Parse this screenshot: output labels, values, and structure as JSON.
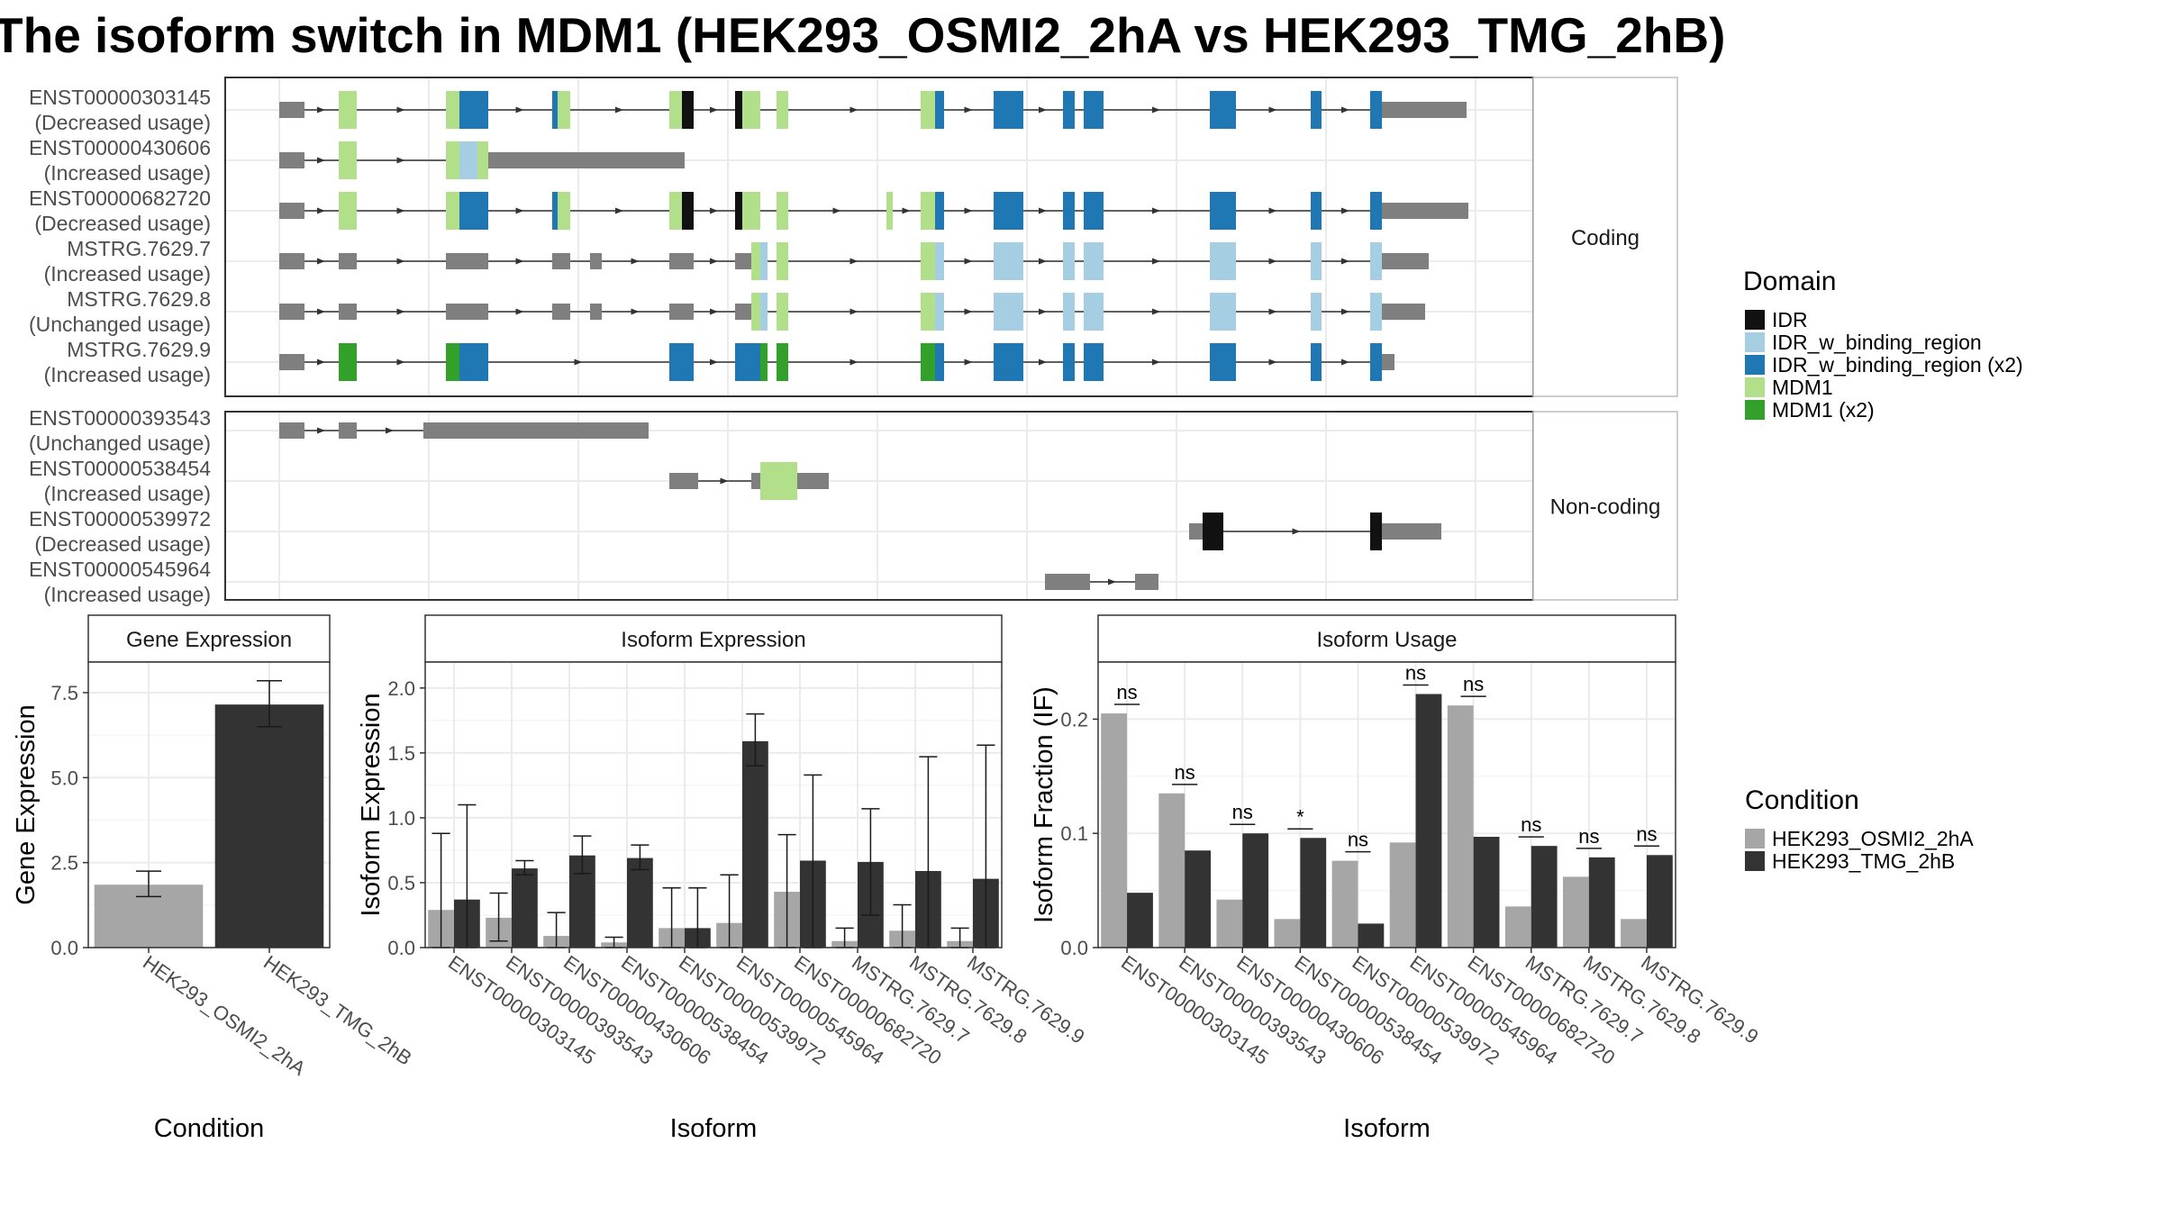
{
  "title": "The isoform switch in MDM1 (HEK293_OSMI2_2hA vs HEK293_TMG_2hB)",
  "colors": {
    "IDR": "#111111",
    "IDR_w_binding_region": "#a6cee3",
    "IDR_w_binding_region (x2)": "#1f78b4",
    "MDM1": "#b2df8a",
    "MDM1 (x2)": "#33a02c",
    "exon": "#7f7f7f",
    "cond_a": "#a6a6a6",
    "cond_b": "#333333"
  },
  "transcripts": {
    "coding_strip": "Coding",
    "noncoding_strip": "Non-coding",
    "coding": [
      {
        "id": "ENST00000303145",
        "usage": "(Decreased usage)",
        "exons": [
          [
            0,
            28,
            "exon"
          ],
          [
            66,
            86,
            "MDM1"
          ],
          [
            185,
            200,
            "MDM1"
          ],
          [
            200,
            232,
            "IDR_w_binding_region (x2)"
          ],
          [
            303,
            309,
            "IDR_w_binding_region (x2)"
          ],
          [
            309,
            323,
            "MDM1"
          ],
          [
            433,
            447,
            "MDM1"
          ],
          [
            447,
            460,
            "IDR"
          ],
          [
            506,
            514,
            "IDR"
          ],
          [
            514,
            534,
            "MDM1"
          ],
          [
            552,
            565,
            "MDM1"
          ],
          [
            712,
            728,
            "MDM1"
          ],
          [
            728,
            738,
            "IDR_w_binding_region (x2)"
          ],
          [
            793,
            826,
            "IDR_w_binding_region (x2)"
          ],
          [
            870,
            883,
            "IDR_w_binding_region (x2)"
          ],
          [
            893,
            915,
            "IDR_w_binding_region (x2)"
          ],
          [
            1033,
            1062,
            "IDR_w_binding_region (x2)"
          ],
          [
            1145,
            1157,
            "IDR_w_binding_region (x2)"
          ],
          [
            1211,
            1224,
            "IDR_w_binding_region (x2)"
          ],
          [
            1224,
            1318,
            "exon"
          ]
        ]
      },
      {
        "id": "ENST00000430606",
        "usage": "(Increased usage)",
        "exons": [
          [
            0,
            28,
            "exon"
          ],
          [
            66,
            86,
            "MDM1"
          ],
          [
            185,
            200,
            "MDM1"
          ],
          [
            200,
            220,
            "IDR_w_binding_region"
          ],
          [
            220,
            232,
            "MDM1"
          ],
          [
            232,
            450,
            "exon"
          ]
        ]
      },
      {
        "id": "ENST00000682720",
        "usage": "(Decreased usage)",
        "exons": [
          [
            0,
            28,
            "exon"
          ],
          [
            66,
            86,
            "MDM1"
          ],
          [
            185,
            200,
            "MDM1"
          ],
          [
            200,
            232,
            "IDR_w_binding_region (x2)"
          ],
          [
            303,
            309,
            "IDR_w_binding_region (x2)"
          ],
          [
            309,
            323,
            "MDM1"
          ],
          [
            433,
            447,
            "MDM1"
          ],
          [
            447,
            460,
            "IDR"
          ],
          [
            506,
            514,
            "IDR"
          ],
          [
            514,
            534,
            "MDM1"
          ],
          [
            552,
            565,
            "MDM1"
          ],
          [
            674,
            681,
            "MDM1"
          ],
          [
            712,
            728,
            "MDM1"
          ],
          [
            728,
            738,
            "IDR_w_binding_region (x2)"
          ],
          [
            793,
            826,
            "IDR_w_binding_region (x2)"
          ],
          [
            870,
            883,
            "IDR_w_binding_region (x2)"
          ],
          [
            893,
            915,
            "IDR_w_binding_region (x2)"
          ],
          [
            1033,
            1062,
            "IDR_w_binding_region (x2)"
          ],
          [
            1145,
            1157,
            "IDR_w_binding_region (x2)"
          ],
          [
            1211,
            1224,
            "IDR_w_binding_region (x2)"
          ],
          [
            1224,
            1320,
            "exon"
          ]
        ]
      },
      {
        "id": "MSTRG.7629.7",
        "usage": "(Increased usage)",
        "exons": [
          [
            0,
            28,
            "exon"
          ],
          [
            66,
            86,
            "exon"
          ],
          [
            185,
            232,
            "exon"
          ],
          [
            303,
            323,
            "exon"
          ],
          [
            345,
            358,
            "exon"
          ],
          [
            433,
            460,
            "exon"
          ],
          [
            506,
            524,
            "exon"
          ],
          [
            524,
            534,
            "MDM1"
          ],
          [
            534,
            542,
            "IDR_w_binding_region"
          ],
          [
            552,
            565,
            "MDM1"
          ],
          [
            712,
            728,
            "MDM1"
          ],
          [
            728,
            738,
            "IDR_w_binding_region"
          ],
          [
            793,
            826,
            "IDR_w_binding_region"
          ],
          [
            870,
            883,
            "IDR_w_binding_region"
          ],
          [
            893,
            915,
            "IDR_w_binding_region"
          ],
          [
            1033,
            1062,
            "IDR_w_binding_region"
          ],
          [
            1145,
            1157,
            "IDR_w_binding_region"
          ],
          [
            1211,
            1224,
            "IDR_w_binding_region"
          ],
          [
            1224,
            1276,
            "exon"
          ]
        ]
      },
      {
        "id": "MSTRG.7629.8",
        "usage": "(Unchanged usage)",
        "exons": [
          [
            0,
            28,
            "exon"
          ],
          [
            66,
            86,
            "exon"
          ],
          [
            185,
            232,
            "exon"
          ],
          [
            303,
            323,
            "exon"
          ],
          [
            345,
            358,
            "exon"
          ],
          [
            433,
            460,
            "exon"
          ],
          [
            506,
            524,
            "exon"
          ],
          [
            524,
            534,
            "MDM1"
          ],
          [
            534,
            542,
            "IDR_w_binding_region"
          ],
          [
            552,
            565,
            "MDM1"
          ],
          [
            712,
            728,
            "MDM1"
          ],
          [
            728,
            738,
            "IDR_w_binding_region"
          ],
          [
            793,
            826,
            "IDR_w_binding_region"
          ],
          [
            870,
            883,
            "IDR_w_binding_region"
          ],
          [
            893,
            915,
            "IDR_w_binding_region"
          ],
          [
            1033,
            1062,
            "IDR_w_binding_region"
          ],
          [
            1145,
            1157,
            "IDR_w_binding_region"
          ],
          [
            1211,
            1224,
            "IDR_w_binding_region"
          ],
          [
            1224,
            1272,
            "exon"
          ]
        ]
      },
      {
        "id": "MSTRG.7629.9",
        "usage": "(Increased usage)",
        "exons": [
          [
            0,
            28,
            "exon"
          ],
          [
            66,
            86,
            "MDM1 (x2)"
          ],
          [
            185,
            200,
            "MDM1 (x2)"
          ],
          [
            200,
            232,
            "IDR_w_binding_region (x2)"
          ],
          [
            433,
            460,
            "IDR_w_binding_region (x2)"
          ],
          [
            506,
            534,
            "IDR_w_binding_region (x2)"
          ],
          [
            534,
            542,
            "MDM1 (x2)"
          ],
          [
            552,
            565,
            "MDM1 (x2)"
          ],
          [
            712,
            728,
            "MDM1 (x2)"
          ],
          [
            728,
            738,
            "IDR_w_binding_region (x2)"
          ],
          [
            793,
            826,
            "IDR_w_binding_region (x2)"
          ],
          [
            870,
            883,
            "IDR_w_binding_region (x2)"
          ],
          [
            893,
            915,
            "IDR_w_binding_region (x2)"
          ],
          [
            1033,
            1062,
            "IDR_w_binding_region (x2)"
          ],
          [
            1145,
            1157,
            "IDR_w_binding_region (x2)"
          ],
          [
            1211,
            1224,
            "IDR_w_binding_region (x2)"
          ],
          [
            1224,
            1238,
            "exon"
          ]
        ]
      }
    ],
    "noncoding": [
      {
        "id": "ENST00000393543",
        "usage": "(Unchanged usage)",
        "exons": [
          [
            0,
            28,
            "exon"
          ],
          [
            66,
            86,
            "exon"
          ],
          [
            160,
            410,
            "exon"
          ]
        ]
      },
      {
        "id": "ENST00000538454",
        "usage": "(Increased usage)",
        "exons": [
          [
            433,
            465,
            "exon"
          ],
          [
            524,
            534,
            "exon"
          ],
          [
            534,
            552,
            "MDM1"
          ],
          [
            552,
            575,
            "MDM1"
          ],
          [
            575,
            610,
            "exon"
          ]
        ]
      },
      {
        "id": "ENST00000539972",
        "usage": "(Decreased usage)",
        "exons": [
          [
            1010,
            1025,
            "exon"
          ],
          [
            1025,
            1048,
            "IDR"
          ],
          [
            1211,
            1224,
            "IDR"
          ],
          [
            1224,
            1290,
            "exon"
          ]
        ]
      },
      {
        "id": "ENST00000545964",
        "usage": "(Increased usage)",
        "exons": [
          [
            850,
            900,
            "exon"
          ],
          [
            950,
            976,
            "exon"
          ]
        ]
      }
    ]
  },
  "legend": {
    "domain_title": "Domain",
    "domain_items": [
      {
        "label": "IDR",
        "color": "#111111"
      },
      {
        "label": "IDR_w_binding_region",
        "color": "#a6cee3"
      },
      {
        "label": "IDR_w_binding_region (x2)",
        "color": "#1f78b4"
      },
      {
        "label": "MDM1",
        "color": "#b2df8a"
      },
      {
        "label": "MDM1 (x2)",
        "color": "#33a02c"
      }
    ],
    "condition_title": "Condition",
    "condition_items": [
      {
        "label": "HEK293_OSMI2_2hA",
        "color": "#a6a6a6"
      },
      {
        "label": "HEK293_TMG_2hB",
        "color": "#333333"
      }
    ]
  },
  "chart_data": [
    {
      "type": "bar",
      "title": "Gene Expression",
      "xlabel": "Condition",
      "ylabel": "Gene Expression",
      "categories": [
        "HEK293_OSMI2_2hA",
        "HEK293_TMG_2hB"
      ],
      "values": [
        1.85,
        7.15
      ],
      "errors": [
        [
          1.5,
          2.25
        ],
        [
          6.5,
          7.85
        ]
      ],
      "ylim": [
        0,
        8.4
      ],
      "yticks": [
        "0.0",
        "2.5",
        "5.0",
        "7.5"
      ],
      "grid": true
    },
    {
      "type": "bar",
      "title": "Isoform Expression",
      "xlabel": "Isoform",
      "ylabel": "Isoform Expression",
      "categories": [
        "ENST00000303145",
        "ENST00000393543",
        "ENST00000430606",
        "ENST00000538454",
        "ENST00000539972",
        "ENST00000545964",
        "ENST00000682720",
        "MSTRG.7629.7",
        "MSTRG.7629.8",
        "MSTRG.7629.9"
      ],
      "series": [
        {
          "name": "HEK293_OSMI2_2hA",
          "values": [
            0.29,
            0.23,
            0.09,
            0.04,
            0.15,
            0.19,
            0.43,
            0.05,
            0.13,
            0.05
          ],
          "errors": [
            [
              0,
              0.88
            ],
            [
              0.05,
              0.42
            ],
            [
              0,
              0.27
            ],
            [
              0,
              0.08
            ],
            [
              0,
              0.46
            ],
            [
              0,
              0.56
            ],
            [
              0,
              0.87
            ],
            [
              0,
              0.15
            ],
            [
              0,
              0.33
            ],
            [
              0,
              0.15
            ]
          ]
        },
        {
          "name": "HEK293_TMG_2hB",
          "values": [
            0.37,
            0.61,
            0.71,
            0.69,
            0.15,
            1.59,
            0.67,
            0.66,
            0.59,
            0.53
          ],
          "errors": [
            [
              0,
              1.1
            ],
            [
              0.56,
              0.67
            ],
            [
              0.57,
              0.86
            ],
            [
              0.6,
              0.79
            ],
            [
              0,
              0.46
            ],
            [
              1.4,
              1.8
            ],
            [
              0,
              1.33
            ],
            [
              0.25,
              1.07
            ],
            [
              0,
              1.47
            ],
            [
              0,
              1.56
            ]
          ]
        }
      ],
      "ylim": [
        0,
        2.2
      ],
      "yticks": [
        "0.0",
        "0.5",
        "1.0",
        "1.5",
        "2.0"
      ],
      "grid": true
    },
    {
      "type": "bar",
      "title": "Isoform Usage",
      "xlabel": "Isoform",
      "ylabel": "Isoform Fraction (IF)",
      "categories": [
        "ENST00000303145",
        "ENST00000393543",
        "ENST00000430606",
        "ENST00000538454",
        "ENST00000539972",
        "ENST00000545964",
        "ENST00000682720",
        "MSTRG.7629.7",
        "MSTRG.7629.8",
        "MSTRG.7629.9"
      ],
      "series": [
        {
          "name": "HEK293_OSMI2_2hA",
          "values": [
            0.205,
            0.135,
            0.042,
            0.025,
            0.076,
            0.092,
            0.212,
            0.036,
            0.062,
            0.025
          ]
        },
        {
          "name": "HEK293_TMG_2hB",
          "values": [
            0.048,
            0.085,
            0.1,
            0.096,
            0.021,
            0.222,
            0.097,
            0.089,
            0.079,
            0.081
          ]
        }
      ],
      "significance": [
        "ns",
        "ns",
        "ns",
        "*",
        "ns",
        "ns",
        "ns",
        "ns",
        "ns",
        "ns"
      ],
      "ylim": [
        0,
        0.25
      ],
      "yticks": [
        "0.0",
        "0.1",
        "0.2"
      ],
      "grid": true
    }
  ]
}
